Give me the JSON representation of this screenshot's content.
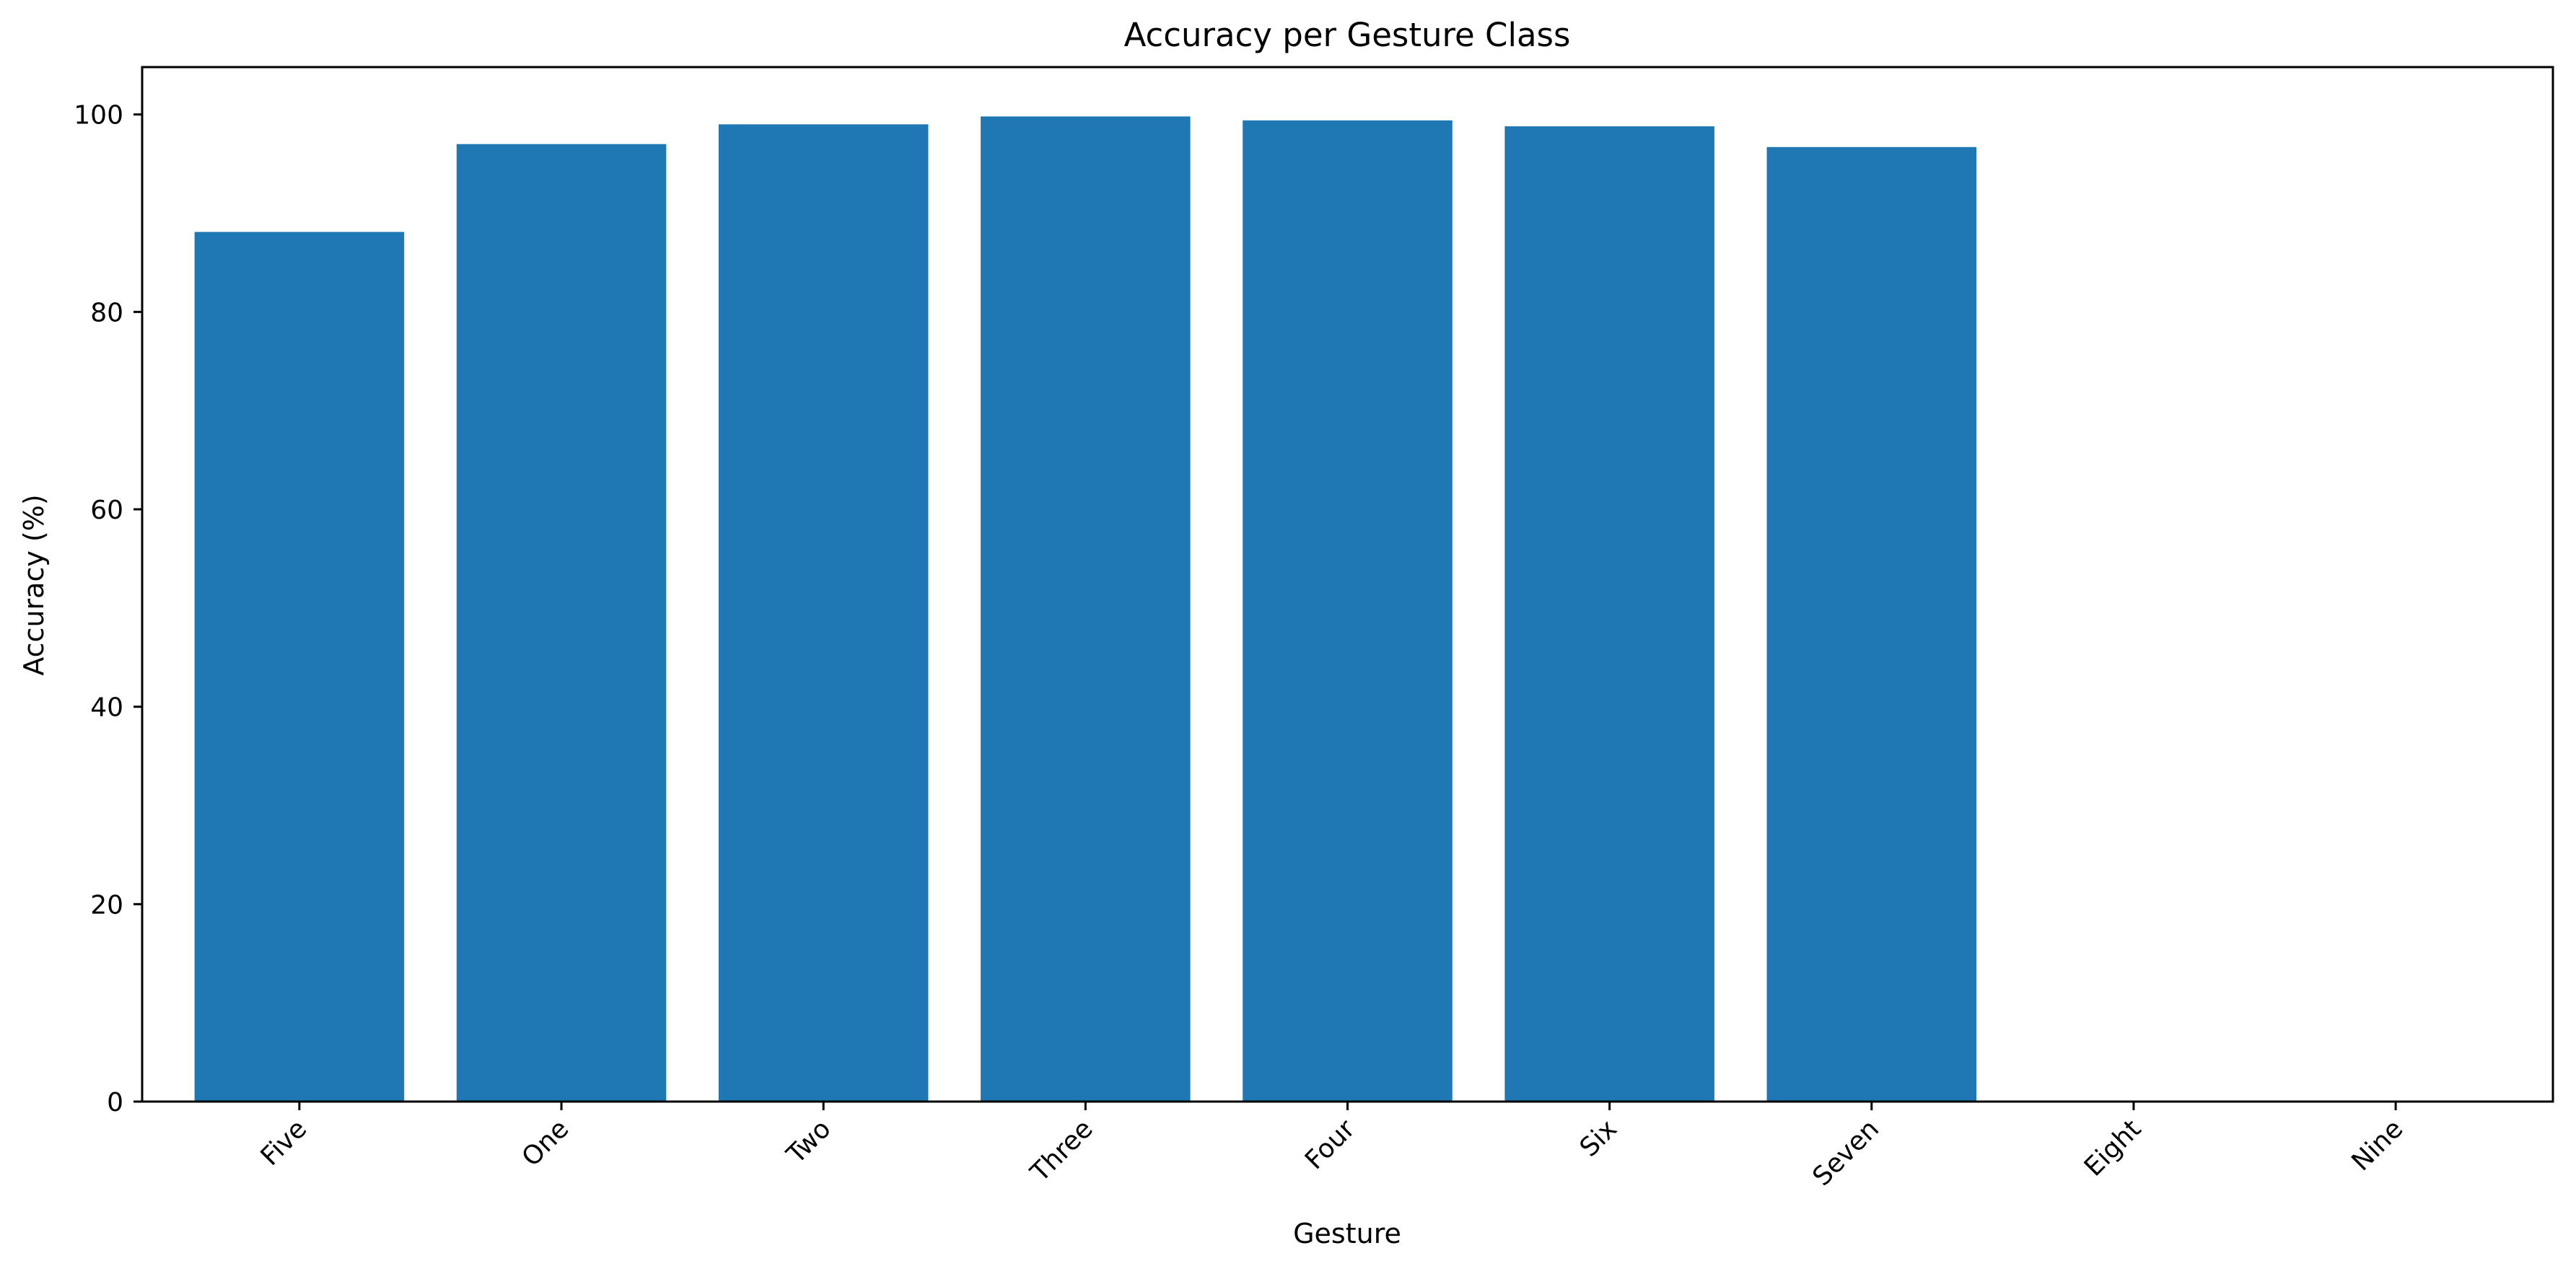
{
  "chart_data": {
    "type": "bar",
    "title": "Accuracy per Gesture Class",
    "xlabel": "Gesture",
    "ylabel": "Accuracy (%)",
    "categories": [
      "Five",
      "One",
      "Two",
      "Three",
      "Four",
      "Six",
      "Seven",
      "Eight",
      "Nine"
    ],
    "values": [
      88.1,
      97.0,
      99.0,
      99.8,
      99.4,
      98.8,
      96.7,
      0,
      0
    ],
    "ylim": [
      0,
      104.8
    ],
    "yticks": [
      0,
      20,
      40,
      60,
      80,
      100
    ],
    "grid": false,
    "bar_color": "#1f77b4",
    "axis_color": "#000000"
  }
}
